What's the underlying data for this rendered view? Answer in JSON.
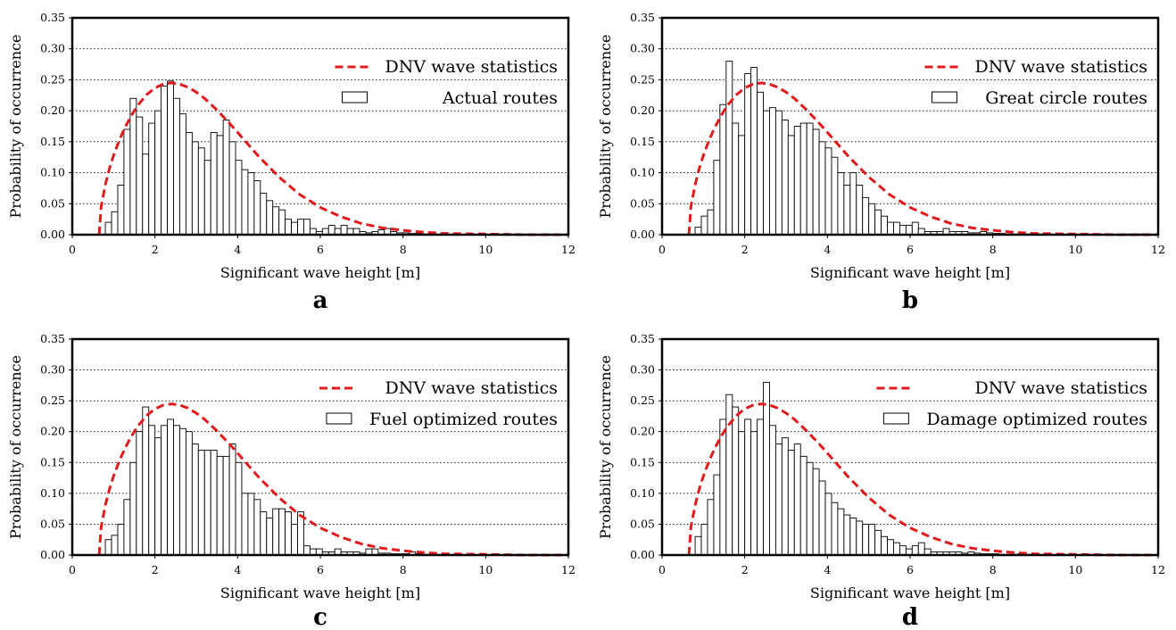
{
  "chart_data": [
    {
      "type": "bar",
      "panel_label": "a",
      "xlabel": "Significant wave height [m]",
      "ylabel": "Probability of occurrence",
      "xlim": [
        0,
        12
      ],
      "ylim": [
        0,
        0.35
      ],
      "xticks": [
        "0",
        "2",
        "4",
        "6",
        "8",
        "10",
        "12"
      ],
      "yticks": [
        "0.00",
        "0.05",
        "0.10",
        "0.15",
        "0.20",
        "0.25",
        "0.30",
        "0.35"
      ],
      "grid": "horizontal dotted",
      "legend_position": "top-right",
      "bin_width": 0.15,
      "bar_start": 0.8,
      "bar_values": [
        0.02,
        0.037,
        0.08,
        0.17,
        0.22,
        0.19,
        0.13,
        0.18,
        0.2,
        0.24,
        0.248,
        0.22,
        0.195,
        0.165,
        0.15,
        0.14,
        0.12,
        0.165,
        0.16,
        0.185,
        0.15,
        0.12,
        0.105,
        0.1,
        0.087,
        0.067,
        0.055,
        0.045,
        0.04,
        0.025,
        0.02,
        0.025,
        0.025,
        0.01,
        0.005,
        0.01,
        0.015,
        0.01,
        0.015,
        0.01,
        0.01,
        0.005,
        0.003,
        0.005,
        0.008,
        0.01,
        0.005,
        0.003,
        0.003,
        0.002,
        0.002,
        0.001,
        0.001,
        0.001,
        0.001,
        0.001
      ],
      "series": [
        {
          "name": "DNV wave statistics",
          "kind": "line",
          "color": "#e31a1c",
          "x": [
            0.65,
            0.7,
            0.8,
            0.9,
            1.0,
            1.1,
            1.2,
            1.3,
            1.4,
            1.5,
            1.6,
            1.8,
            2.0,
            2.2,
            2.4,
            2.6,
            2.8,
            3.0,
            3.2,
            3.5,
            3.8,
            4.0,
            4.5,
            5.0,
            5.5,
            6.0,
            6.5,
            7.0,
            7.5,
            8.0,
            8.5,
            9.0,
            10.0,
            11.0,
            12.0
          ],
          "y": [
            0.0,
            0.046,
            0.081,
            0.107,
            0.128,
            0.146,
            0.162,
            0.176,
            0.189,
            0.2,
            0.21,
            0.226,
            0.237,
            0.243,
            0.245,
            0.243,
            0.238,
            0.23,
            0.22,
            0.201,
            0.18,
            0.165,
            0.127,
            0.093,
            0.065,
            0.044,
            0.029,
            0.018,
            0.011,
            0.007,
            0.004,
            0.002,
            0.001,
            0.0,
            0.0
          ]
        },
        {
          "name": "Actual routes",
          "kind": "bar"
        }
      ]
    },
    {
      "type": "bar",
      "panel_label": "b",
      "xlabel": "Significant wave height [m]",
      "ylabel": "Probability of occurrence",
      "xlim": [
        0,
        12
      ],
      "ylim": [
        0,
        0.35
      ],
      "xticks": [
        "0",
        "2",
        "4",
        "6",
        "8",
        "10",
        "12"
      ],
      "yticks": [
        "0.00",
        "0.05",
        "0.10",
        "0.15",
        "0.20",
        "0.25",
        "0.30",
        "0.35"
      ],
      "grid": "horizontal dotted",
      "legend_position": "top-right",
      "bin_width": 0.15,
      "bar_start": 0.8,
      "bar_values": [
        0.012,
        0.03,
        0.04,
        0.12,
        0.21,
        0.28,
        0.18,
        0.16,
        0.26,
        0.27,
        0.23,
        0.2,
        0.205,
        0.2,
        0.185,
        0.16,
        0.175,
        0.18,
        0.18,
        0.17,
        0.15,
        0.14,
        0.125,
        0.1,
        0.08,
        0.1,
        0.08,
        0.06,
        0.05,
        0.04,
        0.03,
        0.02,
        0.02,
        0.015,
        0.015,
        0.02,
        0.01,
        0.005,
        0.005,
        0.005,
        0.01,
        0.005,
        0.005,
        0.005,
        0.003,
        0.003,
        0.005,
        0.003,
        0.002,
        0.002,
        0.001,
        0.001,
        0.001,
        0.001,
        0.001,
        0.001
      ],
      "series": [
        {
          "name": "DNV wave statistics",
          "kind": "line",
          "color": "#e31a1c",
          "x": [
            0.65,
            0.7,
            0.8,
            0.9,
            1.0,
            1.1,
            1.2,
            1.3,
            1.4,
            1.5,
            1.6,
            1.8,
            2.0,
            2.2,
            2.4,
            2.6,
            2.8,
            3.0,
            3.2,
            3.5,
            3.8,
            4.0,
            4.5,
            5.0,
            5.5,
            6.0,
            6.5,
            7.0,
            7.5,
            8.0,
            8.5,
            9.0,
            10.0,
            11.0,
            12.0
          ],
          "y": [
            0.0,
            0.046,
            0.081,
            0.107,
            0.128,
            0.146,
            0.162,
            0.176,
            0.189,
            0.2,
            0.21,
            0.226,
            0.237,
            0.243,
            0.245,
            0.243,
            0.238,
            0.23,
            0.22,
            0.201,
            0.18,
            0.165,
            0.127,
            0.093,
            0.065,
            0.044,
            0.029,
            0.018,
            0.011,
            0.007,
            0.004,
            0.002,
            0.001,
            0.0,
            0.0
          ]
        },
        {
          "name": "Great circle routes",
          "kind": "bar"
        }
      ]
    },
    {
      "type": "bar",
      "panel_label": "c",
      "xlabel": "Significant wave height [m]",
      "ylabel": "Probability of occurrence",
      "xlim": [
        0,
        12
      ],
      "ylim": [
        0,
        0.35
      ],
      "xticks": [
        "0",
        "2",
        "4",
        "6",
        "8",
        "10",
        "12"
      ],
      "yticks": [
        "0.00",
        "0.05",
        "0.10",
        "0.15",
        "0.20",
        "0.25",
        "0.30",
        "0.35"
      ],
      "grid": "horizontal dotted",
      "legend_position": "top-right",
      "bin_width": 0.15,
      "bar_start": 0.8,
      "bar_values": [
        0.025,
        0.032,
        0.05,
        0.09,
        0.15,
        0.2,
        0.24,
        0.21,
        0.19,
        0.21,
        0.22,
        0.21,
        0.205,
        0.2,
        0.18,
        0.17,
        0.17,
        0.17,
        0.16,
        0.16,
        0.18,
        0.15,
        0.1,
        0.1,
        0.09,
        0.07,
        0.06,
        0.075,
        0.075,
        0.07,
        0.05,
        0.07,
        0.015,
        0.01,
        0.01,
        0.005,
        0.005,
        0.01,
        0.005,
        0.005,
        0.005,
        0.003,
        0.01,
        0.01,
        0.003,
        0.003,
        0.002,
        0.002,
        0.002,
        0.005,
        0.002,
        0.001,
        0.001,
        0.001,
        0.001,
        0.001
      ],
      "series": [
        {
          "name": "DNV wave statistics",
          "kind": "line",
          "color": "#e31a1c",
          "x": [
            0.65,
            0.7,
            0.8,
            0.9,
            1.0,
            1.1,
            1.2,
            1.3,
            1.4,
            1.5,
            1.6,
            1.8,
            2.0,
            2.2,
            2.4,
            2.6,
            2.8,
            3.0,
            3.2,
            3.5,
            3.8,
            4.0,
            4.5,
            5.0,
            5.5,
            6.0,
            6.5,
            7.0,
            7.5,
            8.0,
            8.5,
            9.0,
            10.0,
            11.0,
            12.0
          ],
          "y": [
            0.0,
            0.046,
            0.081,
            0.107,
            0.128,
            0.146,
            0.162,
            0.176,
            0.189,
            0.2,
            0.21,
            0.226,
            0.237,
            0.243,
            0.245,
            0.243,
            0.238,
            0.23,
            0.22,
            0.201,
            0.18,
            0.165,
            0.127,
            0.093,
            0.065,
            0.044,
            0.029,
            0.018,
            0.011,
            0.007,
            0.004,
            0.002,
            0.001,
            0.0,
            0.0
          ]
        },
        {
          "name": "Fuel optimized routes",
          "kind": "bar"
        }
      ]
    },
    {
      "type": "bar",
      "panel_label": "d",
      "xlabel": "Significant wave height [m]",
      "ylabel": "Probability of occurrence",
      "xlim": [
        0,
        12
      ],
      "ylim": [
        0,
        0.35
      ],
      "xticks": [
        "0",
        "2",
        "4",
        "6",
        "8",
        "10",
        "12"
      ],
      "yticks": [
        "0.00",
        "0.05",
        "0.10",
        "0.15",
        "0.20",
        "0.25",
        "0.30",
        "0.35"
      ],
      "grid": "horizontal dotted",
      "legend_position": "top-right",
      "bin_width": 0.15,
      "bar_start": 0.8,
      "bar_values": [
        0.03,
        0.05,
        0.09,
        0.13,
        0.22,
        0.26,
        0.24,
        0.2,
        0.22,
        0.2,
        0.22,
        0.28,
        0.21,
        0.18,
        0.19,
        0.17,
        0.18,
        0.16,
        0.15,
        0.14,
        0.12,
        0.1,
        0.085,
        0.075,
        0.065,
        0.06,
        0.055,
        0.05,
        0.05,
        0.04,
        0.03,
        0.025,
        0.02,
        0.015,
        0.01,
        0.015,
        0.02,
        0.01,
        0.005,
        0.005,
        0.005,
        0.005,
        0.005,
        0.003,
        0.005,
        0.003,
        0.002,
        0.002,
        0.002,
        0.001,
        0.001,
        0.001,
        0.002,
        0.001,
        0.001,
        0.001
      ],
      "series": [
        {
          "name": "DNV wave statistics",
          "kind": "line",
          "color": "#e31a1c",
          "x": [
            0.65,
            0.7,
            0.8,
            0.9,
            1.0,
            1.1,
            1.2,
            1.3,
            1.4,
            1.5,
            1.6,
            1.8,
            2.0,
            2.2,
            2.4,
            2.6,
            2.8,
            3.0,
            3.2,
            3.5,
            3.8,
            4.0,
            4.5,
            5.0,
            5.5,
            6.0,
            6.5,
            7.0,
            7.5,
            8.0,
            8.5,
            9.0,
            10.0,
            11.0,
            12.0
          ],
          "y": [
            0.0,
            0.046,
            0.081,
            0.107,
            0.128,
            0.146,
            0.162,
            0.176,
            0.189,
            0.2,
            0.21,
            0.226,
            0.237,
            0.243,
            0.245,
            0.243,
            0.238,
            0.23,
            0.22,
            0.201,
            0.18,
            0.165,
            0.127,
            0.093,
            0.065,
            0.044,
            0.029,
            0.018,
            0.011,
            0.007,
            0.004,
            0.002,
            0.001,
            0.0,
            0.0
          ]
        },
        {
          "name": "Damage optimized routes",
          "kind": "bar"
        }
      ]
    }
  ]
}
